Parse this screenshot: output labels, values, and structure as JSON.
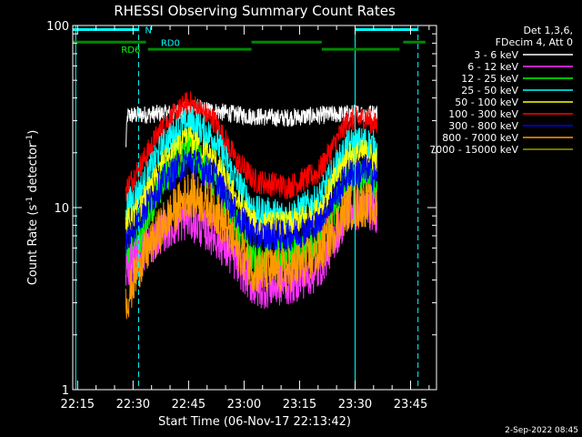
{
  "chart_data": {
    "type": "line",
    "title": "RHESSI Observing Summary Count Rates",
    "xlabel": "Start Time (06-Nov-17 22:13:42)",
    "ylabel_main": "Count Rate (s",
    "ylabel_sup1": "-1",
    "ylabel_mid": " detector",
    "ylabel_sup2": "-1",
    "ylabel_end": ")",
    "yscale": "log",
    "xlim_minutes": [
      13.7,
      112
    ],
    "ylim": [
      1,
      100
    ],
    "x_ticks": [
      {
        "minute": 15,
        "label": "22:15"
      },
      {
        "minute": 30,
        "label": "22:30"
      },
      {
        "minute": 45,
        "label": "22:45"
      },
      {
        "minute": 60,
        "label": "23:00"
      },
      {
        "minute": 75,
        "label": "23:15"
      },
      {
        "minute": 90,
        "label": "23:30"
      },
      {
        "minute": 105,
        "label": "23:45"
      }
    ],
    "y_ticks": [
      {
        "value": 1,
        "label": "1"
      },
      {
        "value": 10,
        "label": "10"
      },
      {
        "value": 100,
        "label": "100"
      }
    ],
    "legend_header": [
      "Det 1,3,6,",
      "FDecim 4, Att 0"
    ],
    "series": [
      {
        "name": "3 - 6 keV",
        "color": "#ffffff",
        "knots": [
          [
            28,
            21
          ],
          [
            28.5,
            32
          ],
          [
            40,
            33
          ],
          [
            47,
            35
          ],
          [
            60,
            32
          ],
          [
            70,
            31
          ],
          [
            80,
            32
          ],
          [
            90,
            33
          ],
          [
            96,
            33
          ]
        ],
        "noise": 0.05
      },
      {
        "name": "6 - 12 keV",
        "color": "#ff33ff",
        "knots": [
          [
            28,
            4.5
          ],
          [
            32,
            5.5
          ],
          [
            38,
            7.5
          ],
          [
            45,
            8.8
          ],
          [
            52,
            7
          ],
          [
            58,
            5
          ],
          [
            63,
            3.6
          ],
          [
            72,
            3.8
          ],
          [
            80,
            4.5
          ],
          [
            88,
            9.5
          ],
          [
            93,
            10
          ],
          [
            96,
            9.5
          ]
        ],
        "noise": 0.12
      },
      {
        "name": "12 - 25 keV",
        "color": "#00ff00",
        "knots": [
          [
            28,
            5
          ],
          [
            32,
            7
          ],
          [
            38,
            14
          ],
          [
            45,
            21
          ],
          [
            52,
            14
          ],
          [
            58,
            8
          ],
          [
            63,
            5
          ],
          [
            72,
            5.5
          ],
          [
            80,
            6.5
          ],
          [
            88,
            14
          ],
          [
            93,
            15
          ],
          [
            96,
            13
          ]
        ],
        "noise": 0.1
      },
      {
        "name": "25 - 50 keV",
        "color": "#00ffff",
        "knots": [
          [
            28,
            10
          ],
          [
            32,
            12.5
          ],
          [
            38,
            22
          ],
          [
            45,
            30
          ],
          [
            52,
            24
          ],
          [
            58,
            14
          ],
          [
            63,
            9.5
          ],
          [
            72,
            9
          ],
          [
            80,
            11
          ],
          [
            88,
            22
          ],
          [
            93,
            23
          ],
          [
            96,
            21
          ]
        ],
        "noise": 0.09
      },
      {
        "name": "50 - 100 keV",
        "color": "#ffff00",
        "knots": [
          [
            28,
            8
          ],
          [
            32,
            10
          ],
          [
            38,
            17
          ],
          [
            45,
            24
          ],
          [
            52,
            18
          ],
          [
            58,
            11
          ],
          [
            63,
            8
          ],
          [
            72,
            8
          ],
          [
            80,
            9.5
          ],
          [
            88,
            19
          ],
          [
            93,
            20
          ],
          [
            96,
            18
          ]
        ],
        "noise": 0.08
      },
      {
        "name": "100 - 300 keV",
        "color": "#ff0000",
        "knots": [
          [
            28,
            12.5
          ],
          [
            32,
            17
          ],
          [
            38,
            28
          ],
          [
            45,
            38
          ],
          [
            52,
            30
          ],
          [
            58,
            18
          ],
          [
            63,
            14
          ],
          [
            72,
            13
          ],
          [
            80,
            15.5
          ],
          [
            88,
            30
          ],
          [
            93,
            31
          ],
          [
            96,
            28
          ]
        ],
        "noise": 0.07
      },
      {
        "name": "300 - 800 keV",
        "color": "#0000ff",
        "knots": [
          [
            28,
            6.5
          ],
          [
            32,
            9
          ],
          [
            38,
            14
          ],
          [
            45,
            18
          ],
          [
            52,
            15
          ],
          [
            58,
            9
          ],
          [
            63,
            7
          ],
          [
            72,
            7
          ],
          [
            80,
            8
          ],
          [
            88,
            15
          ],
          [
            93,
            16
          ],
          [
            96,
            14
          ]
        ],
        "noise": 0.09
      },
      {
        "name": "800 - 7000 keV",
        "color": "#ff9900",
        "knots": [
          [
            28,
            3
          ],
          [
            32,
            5
          ],
          [
            38,
            8
          ],
          [
            45,
            12
          ],
          [
            52,
            10
          ],
          [
            58,
            6
          ],
          [
            63,
            4.5
          ],
          [
            72,
            4.5
          ],
          [
            80,
            5.5
          ],
          [
            88,
            10
          ],
          [
            93,
            10.5
          ],
          [
            96,
            9.5
          ]
        ],
        "noise": 0.13
      },
      {
        "name": "7000 - 15000 keV",
        "color": "#999900",
        "knots": [],
        "noise": 0
      }
    ],
    "vlines": [
      {
        "minute": 14.5,
        "style": "solid",
        "color": "#00ffff"
      },
      {
        "minute": 31.5,
        "style": "dashed",
        "color": "#00ffff"
      },
      {
        "minute": 90,
        "style": "solid",
        "color": "#00ffff"
      },
      {
        "minute": 107,
        "style": "dashed",
        "color": "#00ffff"
      }
    ],
    "flags": {
      "night": {
        "label": "N",
        "color": "#00ffff",
        "value": 95,
        "segments": [
          [
            13.7,
            31.5
          ],
          [
            90,
            107
          ]
        ]
      },
      "rd0": {
        "label": "RD0",
        "color": "#00ffff",
        "line_color": "#008800",
        "value": 81,
        "segments": [
          [
            13.7,
            33.5
          ],
          [
            62,
            81
          ],
          [
            103,
            109
          ]
        ]
      },
      "rd6": {
        "label": "RD6",
        "color": "#00ff00",
        "line_color": "#008800",
        "value": 74,
        "segments": [
          [
            34,
            62
          ],
          [
            81,
            102
          ]
        ]
      }
    }
  },
  "footer_date": "2-Sep-2022 08:45"
}
